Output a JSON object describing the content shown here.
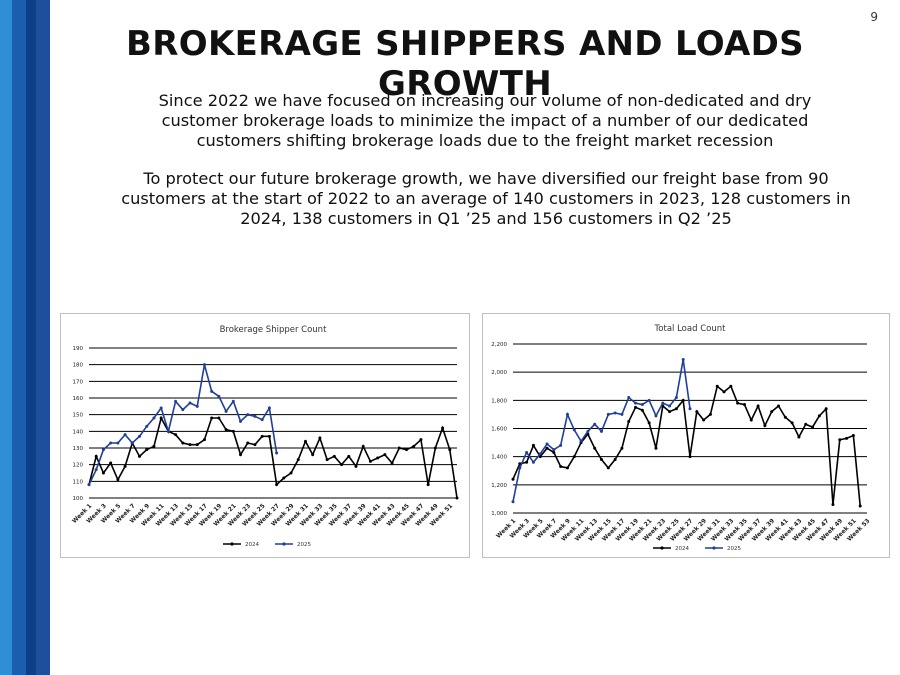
{
  "page_number": "9",
  "title": "BROKERAGE SHIPPERS AND LOADS GROWTH",
  "paragraphs": [
    "Since 2022 we have focused on increasing our volume of non-dedicated and dry customer brokerage loads to minimize the impact of a number of our dedicated customers shifting brokerage loads due to the freight market recession",
    "To protect our future brokerage growth, we have diversified our freight base from 90 customers at the start of 2022 to an average of 140 customers in 2023, 128 customers in 2024, 138 customers in Q1 ’25 and 156 customers in Q2 ’25"
  ],
  "colors": {
    "series_2024": "#000000",
    "series_2025": "#1f3f99",
    "grid": "#000000"
  },
  "chart_data": [
    {
      "type": "line",
      "title": "Brokerage Shipper Count",
      "ylim": [
        100,
        190
      ],
      "yticks": [
        100,
        110,
        120,
        130,
        140,
        150,
        160,
        170,
        180,
        190
      ],
      "xticks": [
        "Week 1",
        "Week 3",
        "Week 5",
        "Week 7",
        "Week 9",
        "Week 11",
        "Week 13",
        "Week 15",
        "Week 17",
        "Week 19",
        "Week 21",
        "Week 23",
        "Week 25",
        "Week 27",
        "Week 29",
        "Week 31",
        "Week 33",
        "Week 35",
        "Week 37",
        "Week 39",
        "Week 41",
        "Week 43",
        "Week 45",
        "Week 47",
        "Week 49",
        "Week 51"
      ],
      "legend": "bottom",
      "series": [
        {
          "name": "2024",
          "values": [
            108,
            125,
            115,
            121,
            111,
            119,
            133,
            125,
            129,
            131,
            148,
            140,
            138,
            133,
            132,
            132,
            135,
            148,
            148,
            141,
            140,
            126,
            133,
            132,
            137,
            137,
            108,
            112,
            115,
            123,
            134,
            126,
            136,
            123,
            125,
            120,
            125,
            119,
            131,
            122,
            124,
            126,
            121,
            130,
            129,
            131,
            135,
            108,
            130,
            142,
            129,
            100
          ]
        },
        {
          "name": "2025",
          "values": [
            108,
            117,
            129,
            133,
            133,
            138,
            133,
            137,
            143,
            148,
            154,
            140,
            158,
            153,
            157,
            155,
            180,
            164,
            161,
            152,
            158,
            146,
            150,
            149,
            147,
            154,
            127
          ]
        }
      ]
    },
    {
      "type": "line",
      "title": "Total Load Count",
      "ylim": [
        1000,
        2200
      ],
      "yticks": [
        "1,000",
        "1,200",
        "1,400",
        "1,600",
        "1,800",
        "2,000",
        "2,200"
      ],
      "xticks": [
        "Week 1",
        "Week 3",
        "Week 5",
        "Week 7",
        "Week 9",
        "Week 11",
        "Week 13",
        "Week 15",
        "Week 17",
        "Week 19",
        "Week 21",
        "Week 23",
        "Week 25",
        "Week 27",
        "Week 29",
        "Week 31",
        "Week 33",
        "Week 35",
        "Week 37",
        "Week 39",
        "Week 41",
        "Week 43",
        "Week 45",
        "Week 47",
        "Week 49",
        "Week 51",
        "Week 53"
      ],
      "legend": "bottom",
      "series": [
        {
          "name": "2024",
          "values": [
            1240,
            1350,
            1360,
            1480,
            1400,
            1460,
            1430,
            1330,
            1320,
            1400,
            1500,
            1560,
            1460,
            1380,
            1320,
            1380,
            1460,
            1650,
            1750,
            1730,
            1640,
            1460,
            1760,
            1720,
            1740,
            1800,
            1400,
            1720,
            1660,
            1700,
            1900,
            1860,
            1900,
            1780,
            1770,
            1660,
            1760,
            1620,
            1720,
            1760,
            1680,
            1640,
            1540,
            1630,
            1610,
            1690,
            1740,
            1060,
            1520,
            1530,
            1550,
            1050
          ]
        },
        {
          "name": "2025",
          "values": [
            1080,
            1320,
            1430,
            1360,
            1420,
            1490,
            1450,
            1480,
            1700,
            1590,
            1510,
            1580,
            1630,
            1580,
            1700,
            1710,
            1700,
            1820,
            1780,
            1770,
            1800,
            1690,
            1780,
            1760,
            1820,
            2090,
            1740
          ]
        }
      ]
    }
  ]
}
